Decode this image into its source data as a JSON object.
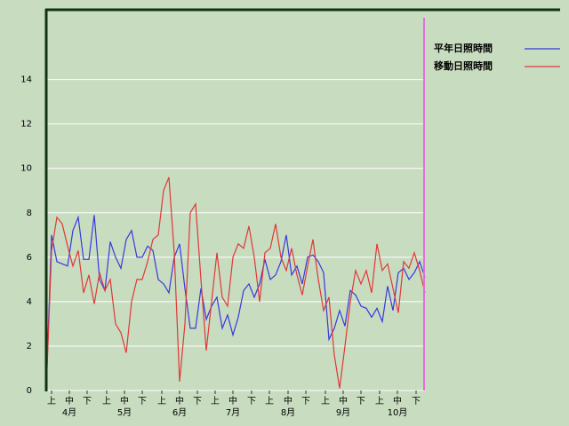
{
  "chart_data": {
    "type": "line",
    "series": [
      {
        "name": "平年日照時間",
        "color": "#3838e0",
        "values": [
          0,
          7.0,
          5.8,
          5.7,
          5.6,
          7.2,
          7.8,
          5.9,
          5.9,
          7.9,
          5.0,
          4.5,
          6.7,
          6.0,
          5.5,
          6.8,
          7.2,
          6.0,
          6.0,
          6.5,
          6.3,
          5.0,
          4.8,
          4.4,
          6.0,
          6.6,
          4.6,
          2.8,
          2.8,
          4.6,
          3.2,
          3.8,
          4.2,
          2.8,
          3.4,
          2.5,
          3.3,
          4.5,
          4.8,
          4.2,
          4.8,
          5.9,
          5.0,
          5.2,
          5.8,
          7.0,
          5.2,
          5.6,
          4.8,
          6.0,
          6.1,
          5.8,
          5.3,
          2.3,
          2.8,
          3.6,
          2.9,
          4.5,
          4.3,
          3.8,
          3.7,
          3.3,
          3.7,
          3.1,
          4.7,
          3.6,
          5.3,
          5.5,
          5.0,
          5.3,
          5.8,
          5.1
        ]
      },
      {
        "name": "移動日照時間",
        "color": "#e03838",
        "values": [
          0,
          6.3,
          7.8,
          7.5,
          6.5,
          5.6,
          6.3,
          4.4,
          5.2,
          3.9,
          5.3,
          4.5,
          5.0,
          3.0,
          2.6,
          1.7,
          4.0,
          5.0,
          5.0,
          5.8,
          6.8,
          7.0,
          9.0,
          9.6,
          6.2,
          0.4,
          3.0,
          8.0,
          8.4,
          5.0,
          1.8,
          4.0,
          6.2,
          4.2,
          3.8,
          6.0,
          6.6,
          6.4,
          7.4,
          6.0,
          4.0,
          6.2,
          6.4,
          7.5,
          6.0,
          5.4,
          6.4,
          5.2,
          4.3,
          5.6,
          6.8,
          5.0,
          3.6,
          4.2,
          1.6,
          0.1,
          2.0,
          4.0,
          5.4,
          4.8,
          5.4,
          4.4,
          6.6,
          5.4,
          5.7,
          4.6,
          3.5,
          5.8,
          5.5,
          6.2,
          5.4,
          4.4
        ]
      }
    ],
    "x": [
      0,
      3,
      6,
      9,
      12,
      15,
      18,
      21,
      24,
      27,
      30,
      33,
      36,
      39,
      42,
      45,
      48,
      51,
      54,
      57,
      60,
      63,
      66,
      69,
      72,
      75,
      78,
      81,
      84,
      87,
      90,
      93,
      96,
      99,
      102,
      105,
      108,
      111,
      114,
      117,
      120,
      123,
      126,
      129,
      132,
      135,
      138,
      141,
      144,
      147,
      150,
      153,
      156,
      159,
      162,
      165,
      168,
      171,
      174,
      177,
      180,
      183,
      186,
      189,
      192,
      195,
      198,
      201,
      204,
      207,
      210,
      213
    ],
    "xlim": [
      0,
      213
    ],
    "ylim": [
      0,
      17.1
    ],
    "yticks": [
      0,
      2,
      4,
      6,
      8,
      10,
      12,
      14
    ],
    "grid": true,
    "xticks": [
      {
        "value": 3,
        "label": "上"
      },
      {
        "value": 13,
        "label": "中"
      },
      {
        "value": 23,
        "label": "下"
      },
      {
        "value": 34,
        "label": "上"
      },
      {
        "value": 44,
        "label": "中"
      },
      {
        "value": 54,
        "label": "下"
      },
      {
        "value": 65,
        "label": "上"
      },
      {
        "value": 75,
        "label": "中"
      },
      {
        "value": 85,
        "label": "下"
      },
      {
        "value": 95,
        "label": "上"
      },
      {
        "value": 105,
        "label": "中"
      },
      {
        "value": 115.5,
        "label": "下"
      },
      {
        "value": 125.5,
        "label": "上"
      },
      {
        "value": 136,
        "label": "中"
      },
      {
        "value": 146,
        "label": "下"
      },
      {
        "value": 157,
        "label": "上"
      },
      {
        "value": 167,
        "label": "中"
      },
      {
        "value": 177,
        "label": "下"
      },
      {
        "value": 187.5,
        "label": "上"
      },
      {
        "value": 197.5,
        "label": "中"
      },
      {
        "value": 208,
        "label": "下"
      }
    ],
    "month_labels": [
      {
        "value": 13,
        "label": "4月"
      },
      {
        "value": 44,
        "label": "5月"
      },
      {
        "value": 75,
        "label": "6月"
      },
      {
        "value": 105,
        "label": "7月"
      },
      {
        "value": 136,
        "label": "8月"
      },
      {
        "value": 167,
        "label": "9月"
      },
      {
        "value": 197.5,
        "label": "10月"
      }
    ]
  }
}
